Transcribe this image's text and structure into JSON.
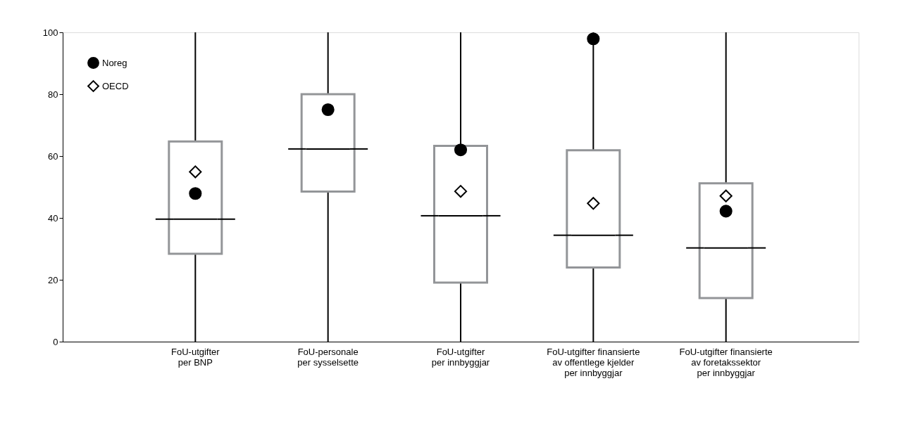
{
  "chart_data": {
    "type": "box",
    "categories": [
      "FoU-utgifter\nper BNP",
      "FoU-personale\nper sysselsette",
      "FoU-utgifter\nper innbyggjar",
      "FoU-utgifter finansierte\nav offentlege kjelder\nper innbyggjar",
      "FoU-utgifter finansierte\nav foretakssektor\nper innbyggjar"
    ],
    "series": [
      {
        "type": "box",
        "color": "#939598",
        "boxes": [
          {
            "low": 0,
            "q1": 28.4,
            "median": 39.6,
            "q3": 64.7,
            "high": 100
          },
          {
            "low": 0,
            "q1": 48.5,
            "median": 62.3,
            "q3": 80,
            "high": 100
          },
          {
            "low": 0,
            "q1": 19.1,
            "median": 40.7,
            "q3": 63.3,
            "high": 100
          },
          {
            "low": 0,
            "q1": 24.0,
            "median": 34.4,
            "q3": 61.9,
            "high": 100
          },
          {
            "low": 0,
            "q1": 14.1,
            "median": 30.3,
            "q3": 51.2,
            "high": 100
          }
        ]
      },
      {
        "type": "scatter",
        "name": "Noreg",
        "color": "#000000",
        "marker": "circle",
        "values": [
          47.9,
          75,
          62.0,
          97.9,
          42.2
        ]
      },
      {
        "type": "scatter",
        "name": "OECD",
        "color": "#000000",
        "marker": "diamond",
        "values": [
          54.9,
          null,
          48.6,
          44.7,
          47.1
        ]
      }
    ],
    "ylim": [
      0,
      100
    ],
    "yticks": [
      0,
      20,
      40,
      60,
      80,
      100
    ],
    "grid": false,
    "legend": "top left"
  }
}
